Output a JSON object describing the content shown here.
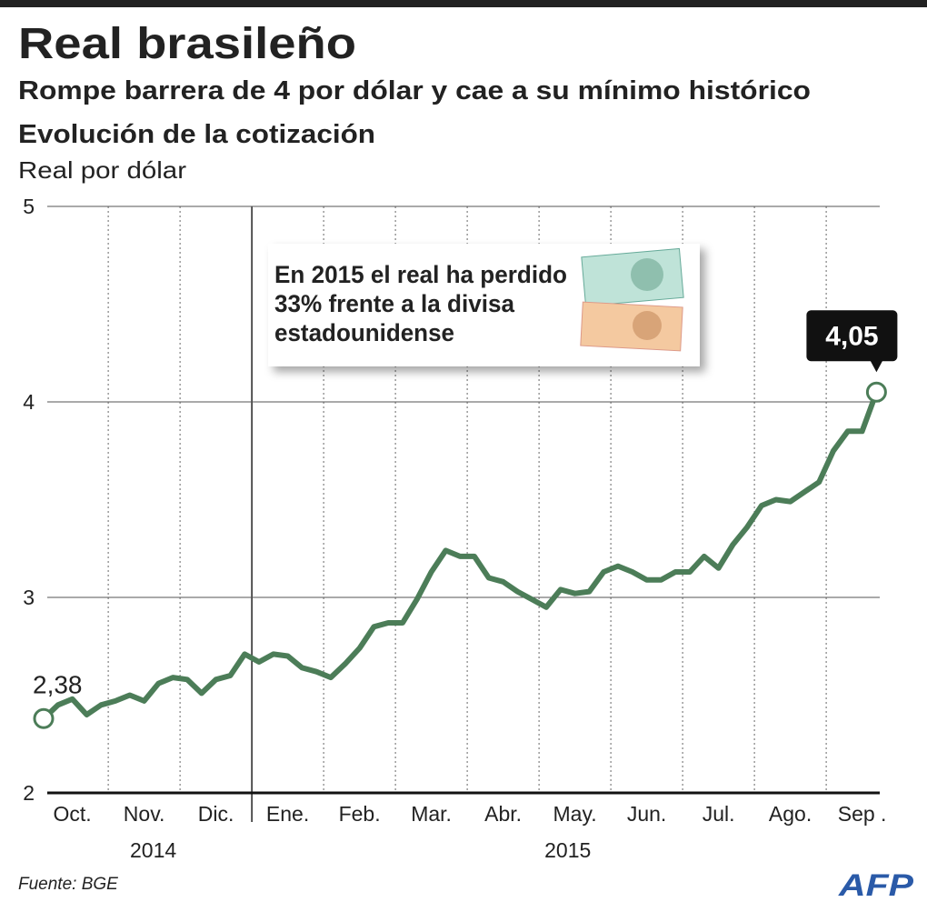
{
  "chart_data": {
    "type": "line",
    "title": "Real brasileño",
    "subtitle": "Rompe barrera de 4 por dólar y cae a su mínimo histórico",
    "chart_title": "Evolución de la cotización",
    "y_label": "Real por dólar",
    "annotation": [
      "En 2015 el real ha perdido",
      "33% frente a la divisa",
      "estadounidense"
    ],
    "year_labels": [
      "2014",
      "2015"
    ],
    "source": "Fuente: BGE",
    "logo": "AFP",
    "color": "#4c7d58",
    "ylim": [
      2,
      5
    ],
    "yticks": [
      2,
      3,
      4,
      5
    ],
    "grid": true,
    "categories": [
      null,
      null,
      "Oct.",
      null,
      null,
      null,
      null,
      "Nov.",
      null,
      null,
      null,
      null,
      "Dic.",
      null,
      null,
      null,
      null,
      "Ene.",
      null,
      null,
      null,
      null,
      "Feb.",
      null,
      null,
      null,
      null,
      "Mar.",
      null,
      null,
      null,
      null,
      "Abr.",
      null,
      null,
      null,
      null,
      "May.",
      null,
      null,
      null,
      null,
      "Jun.",
      null,
      null,
      null,
      null,
      "Jul.",
      null,
      null,
      null,
      null,
      "Ago.",
      null,
      null,
      null,
      null,
      "Sep .",
      null
    ],
    "values": [
      2.38,
      2.45,
      2.48,
      2.4,
      2.45,
      2.47,
      2.5,
      2.47,
      2.56,
      2.59,
      2.58,
      2.51,
      2.58,
      2.6,
      2.71,
      2.67,
      2.71,
      2.7,
      2.64,
      2.62,
      2.59,
      2.66,
      2.74,
      2.85,
      2.87,
      2.87,
      2.99,
      3.13,
      3.24,
      3.21,
      3.21,
      3.1,
      3.08,
      3.03,
      2.99,
      2.95,
      3.04,
      3.02,
      3.03,
      3.13,
      3.16,
      3.13,
      3.09,
      3.09,
      3.13,
      3.13,
      3.21,
      3.15,
      3.27,
      3.36,
      3.47,
      3.5,
      3.49,
      3.54,
      3.59,
      3.75,
      3.85,
      3.85,
      4.05
    ],
    "value_labels": [
      "2,38",
      null,
      null,
      null,
      null,
      null,
      null,
      null,
      null,
      null,
      null,
      null,
      null,
      null,
      null,
      null,
      null,
      null,
      null,
      null,
      null,
      null,
      null,
      null,
      null,
      null,
      null,
      null,
      null,
      null,
      null,
      null,
      null,
      null,
      null,
      null,
      null,
      null,
      null,
      null,
      null,
      null,
      null,
      null,
      null,
      null,
      null,
      null,
      null,
      null,
      null,
      null,
      null,
      null,
      null,
      null,
      null,
      null,
      "4,05"
    ]
  }
}
